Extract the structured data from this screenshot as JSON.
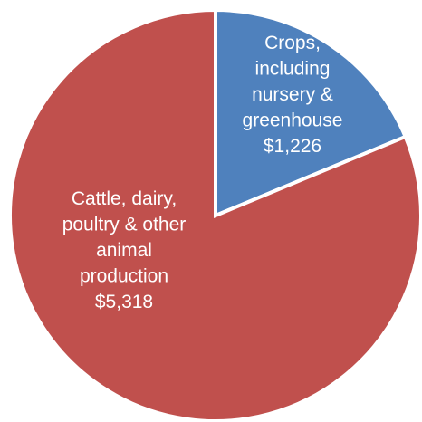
{
  "chart_data": {
    "type": "pie",
    "title": "",
    "slices": [
      {
        "label_lines": [
          "Crops,",
          "including",
          "nursery &",
          "greenhouse",
          "$1,226"
        ],
        "value": 1226,
        "color": "#4f81bd"
      },
      {
        "label_lines": [
          "Cattle, dairy,",
          "poultry & other",
          "animal",
          "production",
          "$5,318"
        ],
        "value": 5318,
        "color": "#c0504d"
      }
    ],
    "start_angle": "12 o'clock",
    "direction": "clockwise",
    "legend": "none",
    "data_labels": "inside slices"
  }
}
